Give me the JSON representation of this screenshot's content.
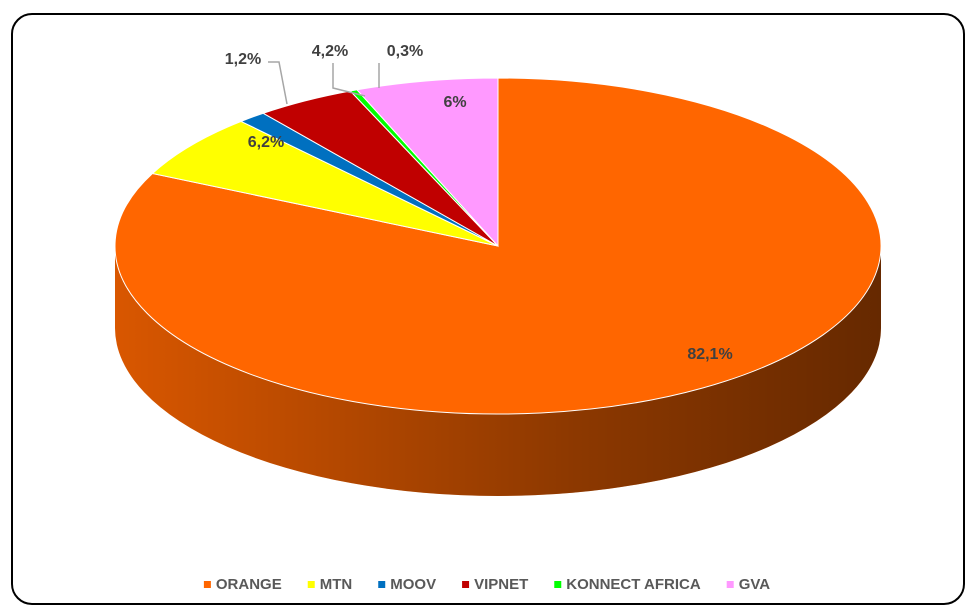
{
  "chart_data": {
    "type": "pie3d",
    "categories": [
      "ORANGE",
      "MTN",
      "MOOV",
      "VIPNET",
      "KONNECT AFRICA",
      "GVA"
    ],
    "values": [
      82.1,
      6.2,
      1.2,
      4.2,
      0.3,
      6
    ],
    "value_labels": [
      "82,1%",
      "6,2%",
      "1,2%",
      "4,2%",
      "0,3%",
      "6%"
    ],
    "colors": [
      "#ff6600",
      "#ffff00",
      "#0070c0",
      "#c00000",
      "#00ff00",
      "#ff99ff"
    ],
    "legend": "bottom"
  }
}
